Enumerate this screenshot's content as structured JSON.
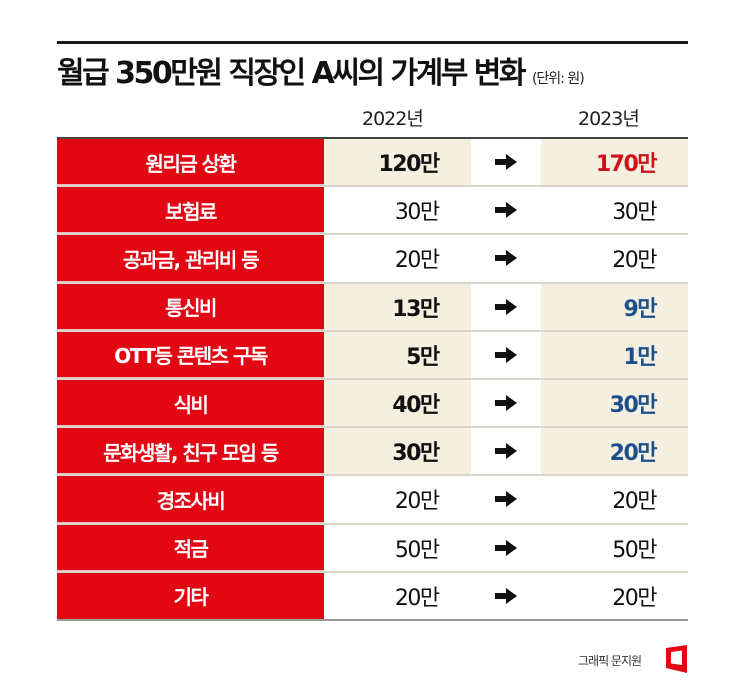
{
  "header": {
    "title": "월급 350만원 직장인 A씨의 가계부 변화",
    "unit": "(단위: 원)"
  },
  "columns": {
    "year1": "2022년",
    "year2": "2023년"
  },
  "rows": [
    {
      "label": "원리금 상환",
      "v1": "120만",
      "v2": "170만",
      "highlight": true,
      "change": "up"
    },
    {
      "label": "보험료",
      "v1": "30만",
      "v2": "30만",
      "highlight": false,
      "change": "same"
    },
    {
      "label": "공과금, 관리비 등",
      "v1": "20만",
      "v2": "20만",
      "highlight": false,
      "change": "same"
    },
    {
      "label": "통신비",
      "v1": "13만",
      "v2": "9만",
      "highlight": true,
      "change": "down"
    },
    {
      "label": "OTT등 콘텐츠 구독",
      "v1": "5만",
      "v2": "1만",
      "highlight": true,
      "change": "down"
    },
    {
      "label": "식비",
      "v1": "40만",
      "v2": "30만",
      "highlight": true,
      "change": "down"
    },
    {
      "label": "문화생활, 친구 모임 등",
      "v1": "30만",
      "v2": "20만",
      "highlight": true,
      "change": "down"
    },
    {
      "label": "경조사비",
      "v1": "20만",
      "v2": "20만",
      "highlight": false,
      "change": "same"
    },
    {
      "label": "적금",
      "v1": "50만",
      "v2": "50만",
      "highlight": false,
      "change": "same"
    },
    {
      "label": "기타",
      "v1": "20만",
      "v2": "20만",
      "highlight": false,
      "change": "same"
    }
  ],
  "colors": {
    "label_bg": "#e30613",
    "highlight_bg": "#f5efdf",
    "increase": "#d0101a",
    "decrease": "#1d4f8f"
  },
  "footer": {
    "credit": "그래픽 문지원",
    "logo_icon": "red-frame-logo"
  }
}
